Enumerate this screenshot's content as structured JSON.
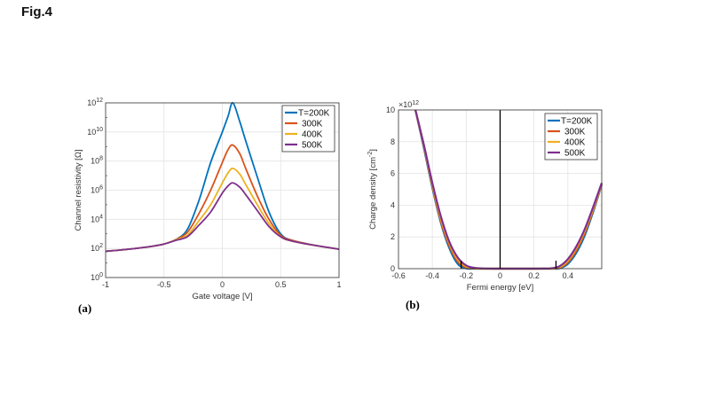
{
  "figure_title": "Fig.4",
  "colors": {
    "T200": "#0072BD",
    "T300": "#D95319",
    "T400": "#EDB120",
    "T500": "#7E2F8E",
    "grid": "#e3e3e3",
    "marker": "#000000"
  },
  "chart_data": [
    {
      "panel_label": "(a)",
      "type": "line",
      "xlabel": "Gate voltage [V]",
      "ylabel": "Channel resistivity [Ω]",
      "yscale": "log",
      "xlim": [
        -1,
        1
      ],
      "ylim_log10": [
        0,
        12
      ],
      "xticks": [
        "-1",
        "-0.5",
        "0",
        "0.5",
        "1"
      ],
      "xtick_values": [
        -1,
        -0.5,
        0,
        0.5,
        1
      ],
      "yticks": [
        {
          "base": "10",
          "exp": "0",
          "value": 0
        },
        {
          "base": "10",
          "exp": "2",
          "value": 2
        },
        {
          "base": "10",
          "exp": "4",
          "value": 4
        },
        {
          "base": "10",
          "exp": "6",
          "value": 6
        },
        {
          "base": "10",
          "exp": "8",
          "value": 8
        },
        {
          "base": "10",
          "exp": "10",
          "value": 10
        },
        {
          "base": "10",
          "exp": "12",
          "value": 12
        }
      ],
      "grid": true,
      "legend_position": "top-right",
      "x": [
        -1,
        -0.8,
        -0.6,
        -0.5,
        -0.4,
        -0.3,
        -0.2,
        -0.1,
        0,
        0.05,
        0.09,
        0.15,
        0.2,
        0.3,
        0.4,
        0.5,
        0.6,
        0.8,
        1
      ],
      "series": [
        {
          "name": "T=200K",
          "color_key": "T200",
          "log10_values": [
            1.8,
            1.95,
            2.15,
            2.3,
            2.6,
            3.3,
            5.3,
            7.9,
            10,
            11.1,
            12,
            10.7,
            9.4,
            6.9,
            4.5,
            3.0,
            2.55,
            2.2,
            1.95
          ]
        },
        {
          "name": "300K",
          "color_key": "T300",
          "log10_values": [
            1.8,
            1.95,
            2.15,
            2.3,
            2.6,
            3.1,
            4.4,
            6.0,
            7.9,
            8.8,
            9.1,
            8.5,
            7.5,
            5.6,
            4.0,
            2.9,
            2.55,
            2.2,
            1.95
          ]
        },
        {
          "name": "400K",
          "color_key": "T400",
          "log10_values": [
            1.8,
            1.95,
            2.15,
            2.3,
            2.58,
            2.9,
            3.9,
            5.0,
            6.5,
            7.2,
            7.5,
            7.1,
            6.4,
            5.0,
            3.7,
            2.8,
            2.5,
            2.2,
            1.95
          ]
        },
        {
          "name": "500K",
          "color_key": "T500",
          "log10_values": [
            1.8,
            1.95,
            2.15,
            2.3,
            2.55,
            2.8,
            3.6,
            4.5,
            5.8,
            6.3,
            6.5,
            6.2,
            5.7,
            4.6,
            3.5,
            2.8,
            2.5,
            2.2,
            1.95
          ]
        }
      ]
    },
    {
      "panel_label": "(b)",
      "type": "line",
      "xlabel": "Fermi energy [eV]",
      "ylabel": "Charge density [cm",
      "ylabel_sup": "-2",
      "ylabel_end": "]",
      "y_multiplier": {
        "prefix": "×10",
        "exp": "12"
      },
      "xlim": [
        -0.6,
        0.6
      ],
      "ylim": [
        0,
        10
      ],
      "xticks": [
        "-0.6",
        "-0.4",
        "-0.2",
        "0",
        "0.2",
        "0.4"
      ],
      "xtick_values": [
        -0.6,
        -0.4,
        -0.2,
        0,
        0.2,
        0.4
      ],
      "yticks": [
        "0",
        "2",
        "4",
        "6",
        "8",
        "10"
      ],
      "ytick_values": [
        0,
        2,
        4,
        6,
        8,
        10
      ],
      "grid": true,
      "legend_position": "top-right",
      "x": [
        -0.5,
        -0.45,
        -0.4,
        -0.35,
        -0.3,
        -0.25,
        -0.2,
        -0.15,
        -0.1,
        0,
        0.1,
        0.2,
        0.25,
        0.3,
        0.35,
        0.4,
        0.45,
        0.5,
        0.55,
        0.6
      ],
      "series": [
        {
          "name": "T=200K",
          "color_key": "T200",
          "values": [
            10,
            7.6,
            5.1,
            2.9,
            1.3,
            0.3,
            0.02,
            0,
            0,
            0,
            0,
            0,
            0,
            0,
            0.02,
            0.3,
            1.0,
            2.1,
            3.6,
            5.3
          ]
        },
        {
          "name": "300K",
          "color_key": "T300",
          "values": [
            10,
            7.7,
            5.2,
            3.0,
            1.45,
            0.45,
            0.08,
            0.01,
            0,
            0,
            0,
            0,
            0,
            0,
            0.06,
            0.4,
            1.15,
            2.25,
            3.7,
            5.33
          ]
        },
        {
          "name": "400K",
          "color_key": "T400",
          "values": [
            10,
            7.75,
            5.3,
            3.15,
            1.6,
            0.58,
            0.14,
            0.03,
            0,
            0,
            0,
            0,
            0,
            0.01,
            0.1,
            0.5,
            1.3,
            2.4,
            3.8,
            5.36
          ]
        },
        {
          "name": "500K",
          "color_key": "T500",
          "values": [
            10,
            7.8,
            5.4,
            3.3,
            1.7,
            0.7,
            0.2,
            0.05,
            0.01,
            0,
            0,
            0,
            0.005,
            0.02,
            0.15,
            0.6,
            1.4,
            2.5,
            3.9,
            5.4
          ]
        }
      ],
      "markers": {
        "vertical_line_x": 0,
        "short_ticks_x": [
          -0.23,
          0.33
        ],
        "short_tick_height": 0.5
      }
    }
  ]
}
